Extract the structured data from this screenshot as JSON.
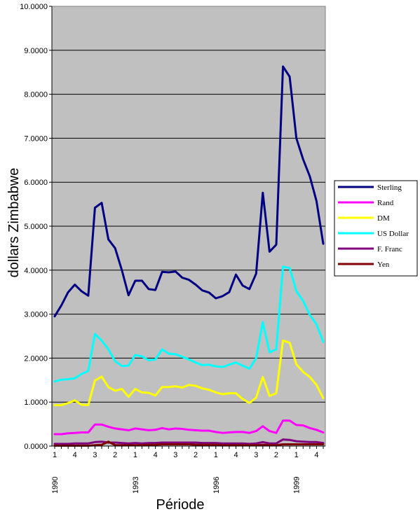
{
  "chart_data": {
    "type": "line",
    "xlabel": "Période",
    "ylabel": "dollars Zimbabwe",
    "ylim": [
      0,
      10
    ],
    "y_ticks": [
      "0.0000",
      "1.0000",
      "2.0000",
      "3.0000",
      "4.0000",
      "5.0000",
      "6.0000",
      "7.0000",
      "8.0000",
      "9.0000",
      "10.0000"
    ],
    "x_tick_labels": [
      "1",
      "",
      "",
      "4",
      "",
      "",
      "3",
      "",
      "",
      "2",
      "",
      "",
      "1",
      "",
      "",
      "4",
      "",
      "",
      "3",
      "",
      "",
      "2",
      "",
      "",
      "1",
      "",
      "",
      "4",
      "",
      "",
      "3",
      "",
      "",
      "2",
      "",
      "",
      "1",
      "",
      "",
      "4",
      ""
    ],
    "year_labels": [
      {
        "index": 0,
        "label": "1990"
      },
      {
        "index": 12,
        "label": "1993"
      },
      {
        "index": 24,
        "label": "1996"
      },
      {
        "index": 36,
        "label": "1999"
      }
    ],
    "plot_background": "#c0c0c0",
    "legend_position": "right",
    "series": [
      {
        "name": "Sterling",
        "color": "#000080",
        "values": [
          2.95,
          3.2,
          3.5,
          3.67,
          3.52,
          3.42,
          5.42,
          5.53,
          4.7,
          4.5,
          4.0,
          3.43,
          3.76,
          3.76,
          3.57,
          3.55,
          3.96,
          3.95,
          3.97,
          3.83,
          3.78,
          3.67,
          3.54,
          3.49,
          3.36,
          3.41,
          3.5,
          3.9,
          3.65,
          3.57,
          3.92,
          5.76,
          4.42,
          4.58,
          8.63,
          8.4,
          7.0,
          6.52,
          6.13,
          5.57,
          4.6
        ]
      },
      {
        "name": "Rand",
        "color": "#ff00ff",
        "values": [
          0.27,
          0.27,
          0.29,
          0.3,
          0.31,
          0.31,
          0.49,
          0.49,
          0.44,
          0.4,
          0.38,
          0.36,
          0.4,
          0.38,
          0.36,
          0.37,
          0.41,
          0.38,
          0.4,
          0.39,
          0.37,
          0.36,
          0.35,
          0.35,
          0.32,
          0.3,
          0.31,
          0.32,
          0.32,
          0.3,
          0.34,
          0.45,
          0.34,
          0.3,
          0.58,
          0.58,
          0.48,
          0.47,
          0.41,
          0.37,
          0.31
        ]
      },
      {
        "name": "DM",
        "color": "#ffff00",
        "values": [
          0.93,
          0.93,
          0.98,
          1.04,
          0.94,
          0.93,
          1.49,
          1.58,
          1.34,
          1.26,
          1.3,
          1.12,
          1.3,
          1.22,
          1.21,
          1.15,
          1.34,
          1.34,
          1.36,
          1.33,
          1.39,
          1.37,
          1.31,
          1.28,
          1.22,
          1.18,
          1.2,
          1.2,
          1.07,
          0.98,
          1.1,
          1.57,
          1.14,
          1.2,
          2.4,
          2.35,
          1.86,
          1.69,
          1.57,
          1.39,
          1.09
        ]
      },
      {
        "name": "US Dollar",
        "color": "#00ffff",
        "values": [
          1.47,
          1.51,
          1.52,
          1.54,
          1.64,
          1.71,
          2.55,
          2.4,
          2.2,
          1.93,
          1.82,
          1.83,
          2.07,
          2.04,
          1.95,
          1.97,
          2.2,
          2.1,
          2.09,
          2.03,
          1.97,
          1.9,
          1.84,
          1.85,
          1.81,
          1.8,
          1.85,
          1.9,
          1.83,
          1.76,
          2.0,
          2.82,
          2.13,
          2.2,
          4.08,
          4.05,
          3.52,
          3.3,
          2.98,
          2.77,
          2.37
        ]
      },
      {
        "name": "F. Franc",
        "color": "#800080",
        "values": [
          0.05,
          0.05,
          0.05,
          0.06,
          0.06,
          0.06,
          0.09,
          0.1,
          0.08,
          0.08,
          0.07,
          0.06,
          0.07,
          0.06,
          0.07,
          0.07,
          0.08,
          0.08,
          0.08,
          0.08,
          0.08,
          0.08,
          0.07,
          0.07,
          0.07,
          0.06,
          0.06,
          0.06,
          0.06,
          0.05,
          0.06,
          0.09,
          0.06,
          0.06,
          0.15,
          0.14,
          0.11,
          0.1,
          0.09,
          0.09,
          0.07
        ]
      },
      {
        "name": "Yen",
        "color": "#800000",
        "values": [
          0.01,
          0.01,
          0.01,
          0.01,
          0.01,
          0.01,
          0.02,
          0.03,
          0.1,
          0.02,
          0.02,
          0.02,
          0.02,
          0.02,
          0.03,
          0.03,
          0.04,
          0.04,
          0.04,
          0.04,
          0.04,
          0.03,
          0.03,
          0.03,
          0.03,
          0.02,
          0.02,
          0.02,
          0.02,
          0.02,
          0.02,
          0.03,
          0.02,
          0.02,
          0.04,
          0.04,
          0.04,
          0.04,
          0.04,
          0.04,
          0.04
        ]
      }
    ]
  }
}
